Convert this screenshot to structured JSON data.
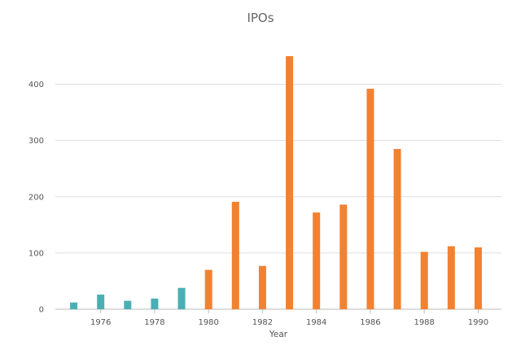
{
  "chart_data": {
    "type": "bar",
    "title": "IPOs",
    "xlabel": "Year",
    "ylabel": "",
    "ylim": [
      0,
      450
    ],
    "yticks": [
      0,
      100,
      200,
      300,
      400
    ],
    "xticks": [
      1976,
      1978,
      1980,
      1982,
      1984,
      1986,
      1988,
      1990
    ],
    "xlim": [
      1974.5,
      1990.5
    ],
    "grid": true,
    "legend": "none",
    "series": [
      {
        "color": "#4aafb4",
        "x": [
          1975,
          1976,
          1977,
          1978,
          1979
        ],
        "values": [
          12,
          26,
          15,
          19,
          38
        ]
      },
      {
        "color": "#f28130",
        "x": [
          1980,
          1981,
          1982,
          1983,
          1984,
          1985,
          1986,
          1987,
          1988,
          1989,
          1990
        ],
        "values": [
          70,
          191,
          77,
          450,
          172,
          186,
          392,
          285,
          102,
          112,
          110
        ]
      }
    ]
  }
}
